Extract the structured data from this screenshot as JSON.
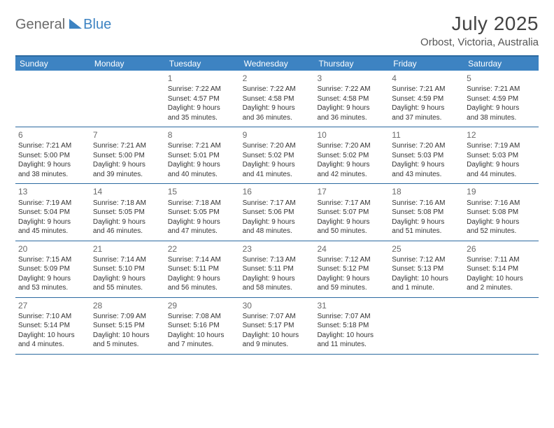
{
  "header": {
    "logo_part1": "General",
    "logo_part2": "Blue",
    "month_title": "July 2025",
    "location": "Orbost, Victoria, Australia"
  },
  "colors": {
    "header_bg": "#3d83c2",
    "border": "#2c6aa0",
    "dow_text": "#ffffff",
    "daynum_text": "#6a6a6a",
    "body_text": "#333333"
  },
  "dow": [
    "Sunday",
    "Monday",
    "Tuesday",
    "Wednesday",
    "Thursday",
    "Friday",
    "Saturday"
  ],
  "weeks": [
    [
      null,
      null,
      {
        "n": "1",
        "sr": "Sunrise: 7:22 AM",
        "ss": "Sunset: 4:57 PM",
        "d1": "Daylight: 9 hours",
        "d2": "and 35 minutes."
      },
      {
        "n": "2",
        "sr": "Sunrise: 7:22 AM",
        "ss": "Sunset: 4:58 PM",
        "d1": "Daylight: 9 hours",
        "d2": "and 36 minutes."
      },
      {
        "n": "3",
        "sr": "Sunrise: 7:22 AM",
        "ss": "Sunset: 4:58 PM",
        "d1": "Daylight: 9 hours",
        "d2": "and 36 minutes."
      },
      {
        "n": "4",
        "sr": "Sunrise: 7:21 AM",
        "ss": "Sunset: 4:59 PM",
        "d1": "Daylight: 9 hours",
        "d2": "and 37 minutes."
      },
      {
        "n": "5",
        "sr": "Sunrise: 7:21 AM",
        "ss": "Sunset: 4:59 PM",
        "d1": "Daylight: 9 hours",
        "d2": "and 38 minutes."
      }
    ],
    [
      {
        "n": "6",
        "sr": "Sunrise: 7:21 AM",
        "ss": "Sunset: 5:00 PM",
        "d1": "Daylight: 9 hours",
        "d2": "and 38 minutes."
      },
      {
        "n": "7",
        "sr": "Sunrise: 7:21 AM",
        "ss": "Sunset: 5:00 PM",
        "d1": "Daylight: 9 hours",
        "d2": "and 39 minutes."
      },
      {
        "n": "8",
        "sr": "Sunrise: 7:21 AM",
        "ss": "Sunset: 5:01 PM",
        "d1": "Daylight: 9 hours",
        "d2": "and 40 minutes."
      },
      {
        "n": "9",
        "sr": "Sunrise: 7:20 AM",
        "ss": "Sunset: 5:02 PM",
        "d1": "Daylight: 9 hours",
        "d2": "and 41 minutes."
      },
      {
        "n": "10",
        "sr": "Sunrise: 7:20 AM",
        "ss": "Sunset: 5:02 PM",
        "d1": "Daylight: 9 hours",
        "d2": "and 42 minutes."
      },
      {
        "n": "11",
        "sr": "Sunrise: 7:20 AM",
        "ss": "Sunset: 5:03 PM",
        "d1": "Daylight: 9 hours",
        "d2": "and 43 minutes."
      },
      {
        "n": "12",
        "sr": "Sunrise: 7:19 AM",
        "ss": "Sunset: 5:03 PM",
        "d1": "Daylight: 9 hours",
        "d2": "and 44 minutes."
      }
    ],
    [
      {
        "n": "13",
        "sr": "Sunrise: 7:19 AM",
        "ss": "Sunset: 5:04 PM",
        "d1": "Daylight: 9 hours",
        "d2": "and 45 minutes."
      },
      {
        "n": "14",
        "sr": "Sunrise: 7:18 AM",
        "ss": "Sunset: 5:05 PM",
        "d1": "Daylight: 9 hours",
        "d2": "and 46 minutes."
      },
      {
        "n": "15",
        "sr": "Sunrise: 7:18 AM",
        "ss": "Sunset: 5:05 PM",
        "d1": "Daylight: 9 hours",
        "d2": "and 47 minutes."
      },
      {
        "n": "16",
        "sr": "Sunrise: 7:17 AM",
        "ss": "Sunset: 5:06 PM",
        "d1": "Daylight: 9 hours",
        "d2": "and 48 minutes."
      },
      {
        "n": "17",
        "sr": "Sunrise: 7:17 AM",
        "ss": "Sunset: 5:07 PM",
        "d1": "Daylight: 9 hours",
        "d2": "and 50 minutes."
      },
      {
        "n": "18",
        "sr": "Sunrise: 7:16 AM",
        "ss": "Sunset: 5:08 PM",
        "d1": "Daylight: 9 hours",
        "d2": "and 51 minutes."
      },
      {
        "n": "19",
        "sr": "Sunrise: 7:16 AM",
        "ss": "Sunset: 5:08 PM",
        "d1": "Daylight: 9 hours",
        "d2": "and 52 minutes."
      }
    ],
    [
      {
        "n": "20",
        "sr": "Sunrise: 7:15 AM",
        "ss": "Sunset: 5:09 PM",
        "d1": "Daylight: 9 hours",
        "d2": "and 53 minutes."
      },
      {
        "n": "21",
        "sr": "Sunrise: 7:14 AM",
        "ss": "Sunset: 5:10 PM",
        "d1": "Daylight: 9 hours",
        "d2": "and 55 minutes."
      },
      {
        "n": "22",
        "sr": "Sunrise: 7:14 AM",
        "ss": "Sunset: 5:11 PM",
        "d1": "Daylight: 9 hours",
        "d2": "and 56 minutes."
      },
      {
        "n": "23",
        "sr": "Sunrise: 7:13 AM",
        "ss": "Sunset: 5:11 PM",
        "d1": "Daylight: 9 hours",
        "d2": "and 58 minutes."
      },
      {
        "n": "24",
        "sr": "Sunrise: 7:12 AM",
        "ss": "Sunset: 5:12 PM",
        "d1": "Daylight: 9 hours",
        "d2": "and 59 minutes."
      },
      {
        "n": "25",
        "sr": "Sunrise: 7:12 AM",
        "ss": "Sunset: 5:13 PM",
        "d1": "Daylight: 10 hours",
        "d2": "and 1 minute."
      },
      {
        "n": "26",
        "sr": "Sunrise: 7:11 AM",
        "ss": "Sunset: 5:14 PM",
        "d1": "Daylight: 10 hours",
        "d2": "and 2 minutes."
      }
    ],
    [
      {
        "n": "27",
        "sr": "Sunrise: 7:10 AM",
        "ss": "Sunset: 5:14 PM",
        "d1": "Daylight: 10 hours",
        "d2": "and 4 minutes."
      },
      {
        "n": "28",
        "sr": "Sunrise: 7:09 AM",
        "ss": "Sunset: 5:15 PM",
        "d1": "Daylight: 10 hours",
        "d2": "and 5 minutes."
      },
      {
        "n": "29",
        "sr": "Sunrise: 7:08 AM",
        "ss": "Sunset: 5:16 PM",
        "d1": "Daylight: 10 hours",
        "d2": "and 7 minutes."
      },
      {
        "n": "30",
        "sr": "Sunrise: 7:07 AM",
        "ss": "Sunset: 5:17 PM",
        "d1": "Daylight: 10 hours",
        "d2": "and 9 minutes."
      },
      {
        "n": "31",
        "sr": "Sunrise: 7:07 AM",
        "ss": "Sunset: 5:18 PM",
        "d1": "Daylight: 10 hours",
        "d2": "and 11 minutes."
      },
      null,
      null
    ]
  ]
}
